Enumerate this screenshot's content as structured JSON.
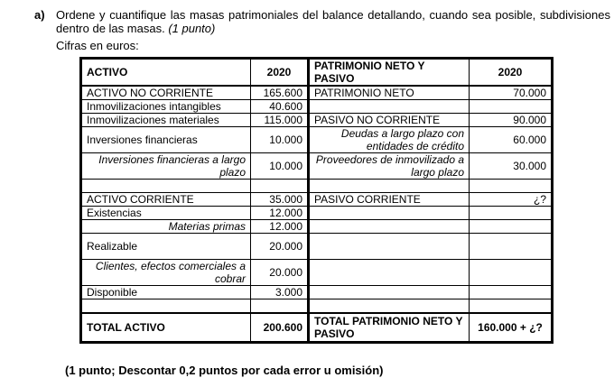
{
  "question": {
    "label": "a)",
    "text": "Ordene y cuantifique las masas patrimoniales del balance detallando, cuando sea posible, subdivisiones dentro de las masas.",
    "points": "(1 punto)"
  },
  "units": "Cifras en euros:",
  "table": {
    "header": [
      "ACTIVO",
      "2020",
      "PATRIMONIO NETO Y PASIVO",
      "2020"
    ],
    "rows": [
      [
        "ACTIVO NO CORRIENTE",
        "165.600",
        "PATRIMONIO NETO",
        "70.000"
      ],
      [
        "Inmovilizaciones intangibles",
        "40.600",
        "",
        ""
      ],
      [
        "Inmovilizaciones materiales",
        "115.000",
        "PASIVO NO CORRIENTE",
        "90.000"
      ],
      [
        "Inversiones financieras",
        "10.000",
        "Deudas a largo plazo con entidades de crédito",
        "60.000"
      ],
      [
        "Inversiones financieras a largo plazo",
        "10.000",
        "Proveedores de inmovilizado a largo plazo",
        "30.000"
      ],
      [
        "",
        "",
        "",
        ""
      ],
      [
        "ACTIVO CORRIENTE",
        "35.000",
        "PASIVO CORRIENTE",
        "¿?"
      ],
      [
        "Existencias",
        "12.000",
        "",
        ""
      ],
      [
        "Materias primas",
        "12.000",
        "",
        ""
      ],
      [
        "Realizable",
        "20.000",
        "",
        ""
      ],
      [
        "Clientes, efectos comerciales a cobrar",
        "20.000",
        "",
        ""
      ],
      [
        "Disponible",
        "3.000",
        "",
        ""
      ],
      [
        "",
        "",
        "",
        ""
      ]
    ],
    "total": [
      "TOTAL ACTIVO",
      "200.600",
      "TOTAL PATRIMONIO NETO Y PASIVO",
      "160.000 + ¿?"
    ]
  },
  "footer": "(1 punto; Descontar 0,2 puntos por cada error u omisión)"
}
